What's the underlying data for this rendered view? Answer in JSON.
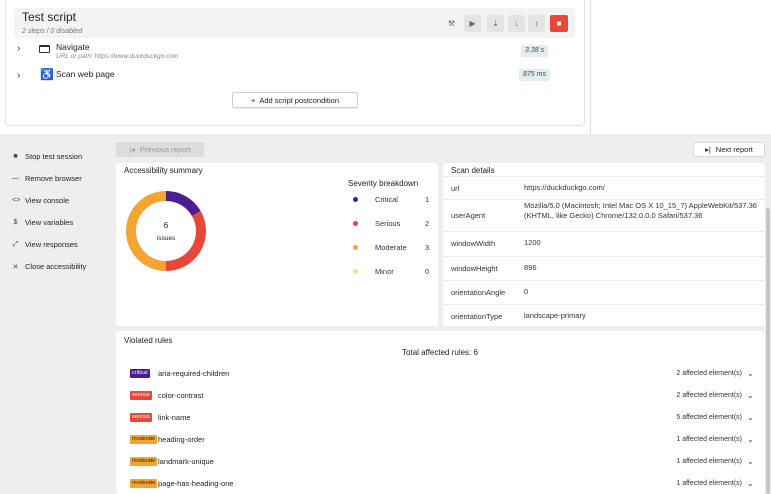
{
  "script": {
    "title": "Test script",
    "subtitle": "2 steps / 0 disabled",
    "steps": [
      {
        "label": "Navigate",
        "sub": "URL or path: https://www.duckduckgo.com",
        "duration": "3.38 s",
        "icon": "browser-window-icon"
      },
      {
        "label": "Scan web page",
        "sub": "",
        "duration": "875 ms",
        "icon": "accessibility-person-icon"
      }
    ],
    "add_postcondition": "Add script postcondition"
  },
  "toolbar": {
    "icons": [
      "tools-icon",
      "play-icon",
      "step-over-icon",
      "step-down-icon",
      "step-both-icon",
      "stop-icon"
    ],
    "glyphs": [
      "⚒",
      "▶",
      "⇣",
      "↓",
      "↕",
      "■"
    ],
    "stop_color": "#e8473a"
  },
  "sidebar": {
    "items": [
      {
        "label": "Stop test session",
        "glyph": "■",
        "icon": "stop-square-icon"
      },
      {
        "label": "Remove browser",
        "glyph": "—",
        "icon": "minus-icon"
      },
      {
        "label": "View console",
        "glyph": "<>",
        "icon": "code-icon"
      },
      {
        "label": "View variables",
        "glyph": "$",
        "icon": "dollar-icon"
      },
      {
        "label": "View responses",
        "glyph": "⤢",
        "icon": "responses-icon"
      },
      {
        "label": "Close accessibility",
        "glyph": "✕",
        "icon": "close-icon"
      }
    ]
  },
  "report_nav": {
    "previous": "Previous report",
    "next": "Next report"
  },
  "summary": {
    "title": "Accessibility summary",
    "total": "6",
    "total_label": "issues",
    "breakdown_title": "Severity breakdown",
    "severities": [
      {
        "label": "Critical",
        "count": 1,
        "color": "#4a1d91"
      },
      {
        "label": "Serious",
        "count": 2,
        "color": "#e8473a"
      },
      {
        "label": "Moderate",
        "count": 3,
        "color": "#f2a530"
      },
      {
        "label": "Minor",
        "count": 0,
        "color": "#f5e08a"
      }
    ]
  },
  "scan": {
    "title": "Scan details",
    "rows": [
      {
        "key": "url",
        "value": "https://duckduckgo.com/"
      },
      {
        "key": "userAgent",
        "value": "Mozilla/5.0 (Macintosh; Intel Mac OS X 10_15_7) AppleWebKit/537.36 (KHTML, like Gecko) Chrome/132.0.0.0 Safari/537.36"
      },
      {
        "key": "windowWidth",
        "value": "1200"
      },
      {
        "key": "windowHeight",
        "value": "896"
      },
      {
        "key": "orientationAngle",
        "value": "0"
      },
      {
        "key": "orientationType",
        "value": "landscape-primary"
      }
    ]
  },
  "rules": {
    "title": "Violated rules",
    "total": "Total affected rules: 6",
    "items": [
      {
        "severity": "critical",
        "name": "aria-required-children",
        "affected": "2 affected element(s)"
      },
      {
        "severity": "serious",
        "name": "color-contrast",
        "affected": "2 affected element(s)"
      },
      {
        "severity": "serious",
        "name": "link-name",
        "affected": "5 affected element(s)"
      },
      {
        "severity": "moderate",
        "name": "heading-order",
        "affected": "1 affected element(s)"
      },
      {
        "severity": "moderate",
        "name": "landmark-unique",
        "affected": "1 affected element(s)"
      },
      {
        "severity": "moderate",
        "name": "page-has-heading-one",
        "affected": "1 affected element(s)"
      }
    ]
  }
}
